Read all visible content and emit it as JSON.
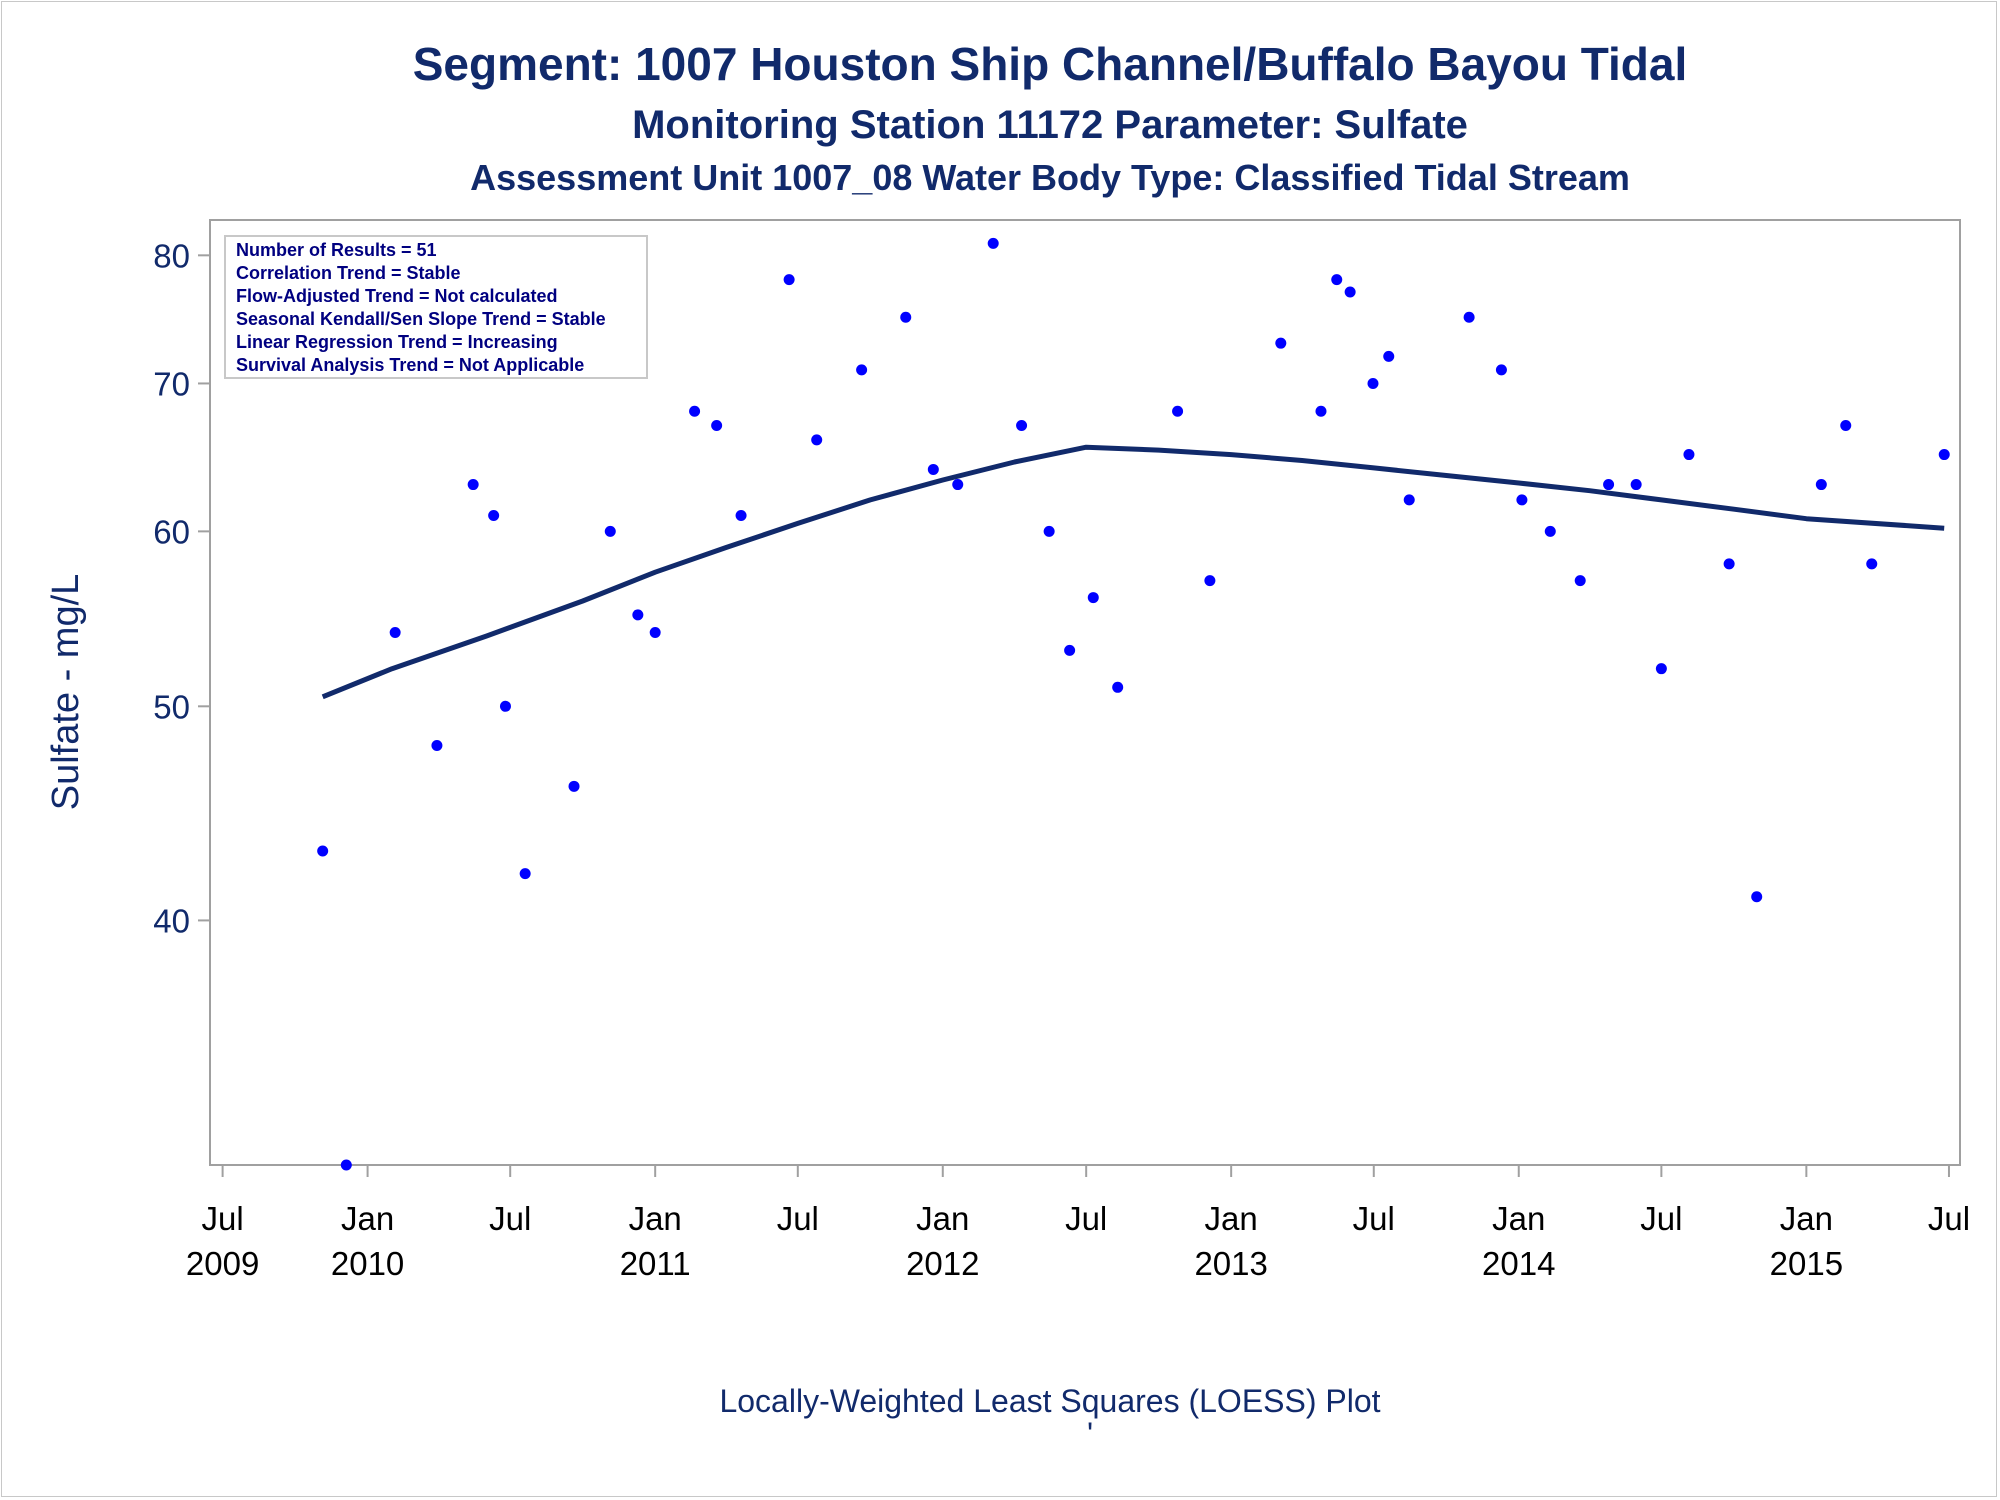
{
  "chart_data": {
    "type": "scatter",
    "title": "Segment: 1007  Houston Ship Channel/Buffalo Bayou Tidal",
    "subtitle": "Monitoring Station 11172 Parameter: Sulfate",
    "subtitle2": "Assessment Unit 1007_08   Water Body Type: Classified Tidal Stream",
    "xlabel": "",
    "ylabel": "Sulfate - mg/L",
    "footnote": "Locally-Weighted Least Squares (LOESS) Plot",
    "footnote_mark": "'",
    "yscale": "log",
    "ylim": [
      31,
      83
    ],
    "yticks": [
      40,
      50,
      60,
      70,
      80
    ],
    "xlim": [
      "2009-06-15",
      "2015-07-15"
    ],
    "xticks": [
      {
        "date": "2009-07-01",
        "line1": "Jul",
        "line2": "2009"
      },
      {
        "date": "2010-01-01",
        "line1": "Jan",
        "line2": "2010"
      },
      {
        "date": "2010-07-01",
        "line1": "Jul",
        "line2": ""
      },
      {
        "date": "2011-01-01",
        "line1": "Jan",
        "line2": "2011"
      },
      {
        "date": "2011-07-01",
        "line1": "Jul",
        "line2": ""
      },
      {
        "date": "2012-01-01",
        "line1": "Jan",
        "line2": "2012"
      },
      {
        "date": "2012-07-01",
        "line1": "Jul",
        "line2": ""
      },
      {
        "date": "2013-01-01",
        "line1": "Jan",
        "line2": "2013"
      },
      {
        "date": "2013-07-01",
        "line1": "Jul",
        "line2": ""
      },
      {
        "date": "2014-01-01",
        "line1": "Jan",
        "line2": "2014"
      },
      {
        "date": "2014-07-01",
        "line1": "Jul",
        "line2": ""
      },
      {
        "date": "2015-01-01",
        "line1": "Jan",
        "line2": "2015"
      },
      {
        "date": "2015-07-01",
        "line1": "Jul",
        "line2": ""
      }
    ],
    "legend_box": [
      "Number of Results = 51",
      "Correlation Trend = Stable",
      "Flow-Adjusted Trend = Not calculated",
      "Seasonal Kendall/Sen Slope Trend = Stable",
      "Linear Regression Trend = Increasing",
      "Survival Analysis Trend = Not Applicable"
    ],
    "legend_position": "top-left",
    "grid": false,
    "colors": {
      "points": "#0000ff",
      "loess": "#112a6b",
      "text": "#112a6b",
      "axis": "#a0a0a0"
    },
    "series": [
      {
        "type": "scatter",
        "points": [
          {
            "x": "2009-11-05",
            "y": 43
          },
          {
            "x": "2009-12-05",
            "y": 31
          },
          {
            "x": "2010-02-05",
            "y": 54
          },
          {
            "x": "2010-03-30",
            "y": 48
          },
          {
            "x": "2010-05-15",
            "y": 63
          },
          {
            "x": "2010-06-10",
            "y": 61
          },
          {
            "x": "2010-06-25",
            "y": 50
          },
          {
            "x": "2010-07-20",
            "y": 42
          },
          {
            "x": "2010-09-20",
            "y": 46
          },
          {
            "x": "2010-11-05",
            "y": 60
          },
          {
            "x": "2010-12-10",
            "y": 55
          },
          {
            "x": "2011-01-01",
            "y": 54
          },
          {
            "x": "2011-02-20",
            "y": 68
          },
          {
            "x": "2011-03-20",
            "y": 67
          },
          {
            "x": "2011-04-20",
            "y": 61
          },
          {
            "x": "2011-06-20",
            "y": 78
          },
          {
            "x": "2011-07-25",
            "y": 66
          },
          {
            "x": "2011-09-20",
            "y": 71
          },
          {
            "x": "2011-11-15",
            "y": 75
          },
          {
            "x": "2011-12-20",
            "y": 64
          },
          {
            "x": "2012-01-20",
            "y": 63
          },
          {
            "x": "2012-03-05",
            "y": 81
          },
          {
            "x": "2012-04-10",
            "y": 67
          },
          {
            "x": "2012-05-15",
            "y": 60
          },
          {
            "x": "2012-06-10",
            "y": 53
          },
          {
            "x": "2012-07-10",
            "y": 56
          },
          {
            "x": "2012-08-10",
            "y": 51
          },
          {
            "x": "2012-10-25",
            "y": 68
          },
          {
            "x": "2012-12-05",
            "y": 57
          },
          {
            "x": "2013-03-05",
            "y": 73
          },
          {
            "x": "2013-04-25",
            "y": 68
          },
          {
            "x": "2013-05-15",
            "y": 78
          },
          {
            "x": "2013-06-01",
            "y": 77
          },
          {
            "x": "2013-06-30",
            "y": 70
          },
          {
            "x": "2013-07-20",
            "y": 72
          },
          {
            "x": "2013-08-15",
            "y": 62
          },
          {
            "x": "2013-10-30",
            "y": 75
          },
          {
            "x": "2013-12-10",
            "y": 71
          },
          {
            "x": "2014-01-05",
            "y": 62
          },
          {
            "x": "2014-02-10",
            "y": 60
          },
          {
            "x": "2014-03-20",
            "y": 57
          },
          {
            "x": "2014-04-25",
            "y": 63
          },
          {
            "x": "2014-05-30",
            "y": 63
          },
          {
            "x": "2014-07-01",
            "y": 52
          },
          {
            "x": "2014-08-05",
            "y": 65
          },
          {
            "x": "2014-09-25",
            "y": 58
          },
          {
            "x": "2014-10-30",
            "y": 41
          },
          {
            "x": "2015-01-20",
            "y": 63
          },
          {
            "x": "2015-02-20",
            "y": 67
          },
          {
            "x": "2015-03-25",
            "y": 58
          },
          {
            "x": "2015-06-25",
            "y": 65
          }
        ]
      },
      {
        "type": "line",
        "points": [
          {
            "x": "2009-11-05",
            "y": 50.5
          },
          {
            "x": "2010-02-01",
            "y": 52.0
          },
          {
            "x": "2010-06-01",
            "y": 53.8
          },
          {
            "x": "2010-10-01",
            "y": 55.8
          },
          {
            "x": "2011-01-01",
            "y": 57.5
          },
          {
            "x": "2011-04-01",
            "y": 59.0
          },
          {
            "x": "2011-07-01",
            "y": 60.5
          },
          {
            "x": "2011-10-01",
            "y": 62.0
          },
          {
            "x": "2012-01-01",
            "y": 63.3
          },
          {
            "x": "2012-04-01",
            "y": 64.5
          },
          {
            "x": "2012-07-01",
            "y": 65.5
          },
          {
            "x": "2012-10-01",
            "y": 65.3
          },
          {
            "x": "2013-01-01",
            "y": 65.0
          },
          {
            "x": "2013-04-01",
            "y": 64.6
          },
          {
            "x": "2013-07-01",
            "y": 64.1
          },
          {
            "x": "2013-10-01",
            "y": 63.6
          },
          {
            "x": "2014-01-01",
            "y": 63.1
          },
          {
            "x": "2014-04-01",
            "y": 62.6
          },
          {
            "x": "2014-07-01",
            "y": 62.0
          },
          {
            "x": "2014-10-01",
            "y": 61.4
          },
          {
            "x": "2015-01-01",
            "y": 60.8
          },
          {
            "x": "2015-06-25",
            "y": 60.2
          }
        ]
      }
    ]
  }
}
